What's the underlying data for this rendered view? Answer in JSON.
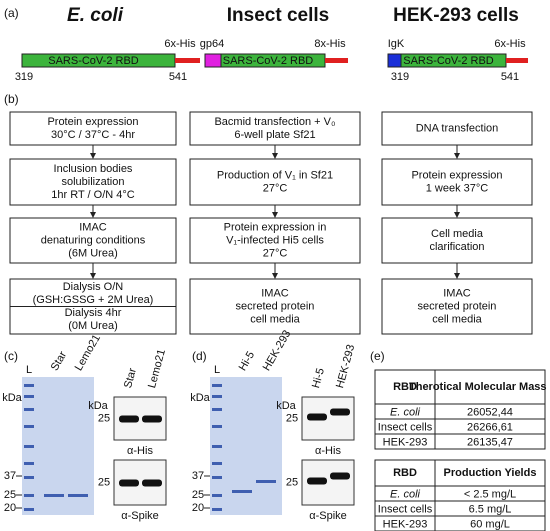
{
  "panel_a": {
    "label": "(a)",
    "constructs": [
      {
        "host": "E. coli",
        "tag_c": "6x-His",
        "domain": "SARS-CoV-2 RBD",
        "start": "319",
        "end": "541"
      },
      {
        "host": "Insect cells",
        "tag_n": "gp64",
        "tag_c": "8x-His",
        "domain": "SARS-CoV-2 RBD"
      },
      {
        "host": "HEK-293 cells",
        "tag_n": "IgK",
        "tag_c": "6x-His",
        "domain": "SARS-CoV-2 RBD",
        "start": "319",
        "end": "541"
      }
    ]
  },
  "panel_b": {
    "label": "(b)",
    "columns": [
      [
        [
          "Protein expression",
          "30°C / 37°C - 4hr"
        ],
        [
          "Inclusion bodies",
          "solubilization",
          "1hr RT / O/N 4°C"
        ],
        [
          "IMAC",
          "denaturing conditions",
          "(6M Urea)"
        ],
        [
          "Dialysis O/N",
          "(GSH:GSSG + 2M Urea)",
          "Dialysis 4hr",
          "(0M Urea)"
        ]
      ],
      [
        [
          "Bacmid transfection + V₀",
          "6-well plate Sf21"
        ],
        [
          "Production of V₁ in Sf21",
          "27°C"
        ],
        [
          "Protein expression in",
          "V₁-infected Hi5 cells",
          "27°C"
        ],
        [
          "IMAC",
          "secreted protein",
          "cell media"
        ]
      ],
      [
        [
          "DNA transfection"
        ],
        [
          "Protein expression",
          "1 week 37°C"
        ],
        [
          "Cell media",
          "clarification"
        ],
        [
          "IMAC",
          "secreted protein",
          "cell media"
        ]
      ]
    ]
  },
  "panel_c": {
    "label": "(c)",
    "gel": {
      "unit": "kDa",
      "lanes": [
        "L",
        "Star",
        "Lemo21"
      ],
      "markers": [
        "37",
        "25",
        "20"
      ]
    },
    "blots": {
      "unit": "kDa",
      "lanes": [
        "Star",
        "Lemo21"
      ],
      "items": [
        {
          "marker": "25",
          "antibody": "α-His"
        },
        {
          "marker": "25",
          "antibody": "α-Spike"
        }
      ]
    }
  },
  "panel_d": {
    "label": "(d)",
    "gel": {
      "unit": "kDa",
      "lanes": [
        "L",
        "Hi-5",
        "HEK-293"
      ],
      "markers": [
        "37",
        "25",
        "20"
      ]
    },
    "blots": {
      "unit": "kDa",
      "lanes": [
        "Hi-5",
        "HEK-293"
      ],
      "items": [
        {
          "marker": "25",
          "antibody": "α-His"
        },
        {
          "marker": "25",
          "antibody": "α-Spike"
        }
      ]
    }
  },
  "panel_e": {
    "label": "(e)",
    "tables": [
      {
        "header": [
          "RBD",
          "Therotical Molecular Mass (Da)"
        ],
        "rows": [
          [
            "E. coli",
            "26052,44"
          ],
          [
            "Insect cells",
            "26266,61"
          ],
          [
            "HEK-293",
            "26135,47"
          ]
        ]
      },
      {
        "header": [
          "RBD",
          "Production Yields"
        ],
        "rows": [
          [
            "E. coli",
            "< 2.5 mg/L"
          ],
          [
            "Insect cells",
            "6.5 mg/L"
          ],
          [
            "HEK-293",
            "60 mg/L"
          ]
        ]
      }
    ]
  }
}
